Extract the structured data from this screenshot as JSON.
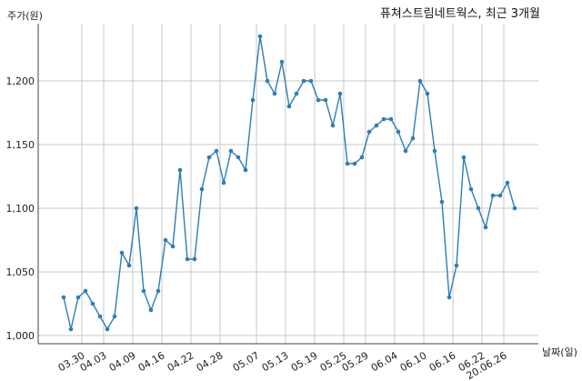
{
  "chart_data": {
    "type": "line",
    "title": "퓨쳐스트림네트웍스, 최근 3개월",
    "ylabel": "주가(원)",
    "xlabel": "날짜(일)",
    "ylim": [
      1000,
      1235
    ],
    "y_ticks": [
      1000,
      1050,
      1100,
      1150,
      1200
    ],
    "y_tick_labels": [
      "1,000",
      "1,050",
      "1,100",
      "1,150",
      "1,200"
    ],
    "x_tick_labels": [
      "03.30",
      "04.03",
      "04.09",
      "04.16",
      "04.22",
      "04.28",
      "05.07",
      "05.13",
      "05.19",
      "05.25",
      "05.29",
      "06.04",
      "06.10",
      "06.16",
      "06.22",
      "20.06.26"
    ],
    "x_tick_positions": [
      2.5,
      5.5,
      9.5,
      13.5,
      17.5,
      21.5,
      26.5,
      30.5,
      34.5,
      38.5,
      41.5,
      45.5,
      49.5,
      53.5,
      57.5,
      60.5
    ],
    "grid": true,
    "series_color": "#2e7db5",
    "series": [
      {
        "values": [
          1030,
          1005,
          1030,
          1035,
          1025,
          1015,
          1005,
          1015,
          1065,
          1055,
          1100,
          1035,
          1020,
          1035,
          1075,
          1070,
          1130,
          1060,
          1060,
          1115,
          1140,
          1145,
          1120,
          1145,
          1140,
          1130,
          1185,
          1235,
          1200,
          1190,
          1215,
          1180,
          1190,
          1200,
          1200,
          1185,
          1185,
          1165,
          1190,
          1135,
          1135,
          1140,
          1160,
          1165,
          1170,
          1170,
          1160,
          1145,
          1155,
          1200,
          1190,
          1145,
          1105,
          1030,
          1055,
          1140,
          1115,
          1100,
          1085,
          1110,
          1110,
          1120,
          1100
        ]
      }
    ]
  }
}
